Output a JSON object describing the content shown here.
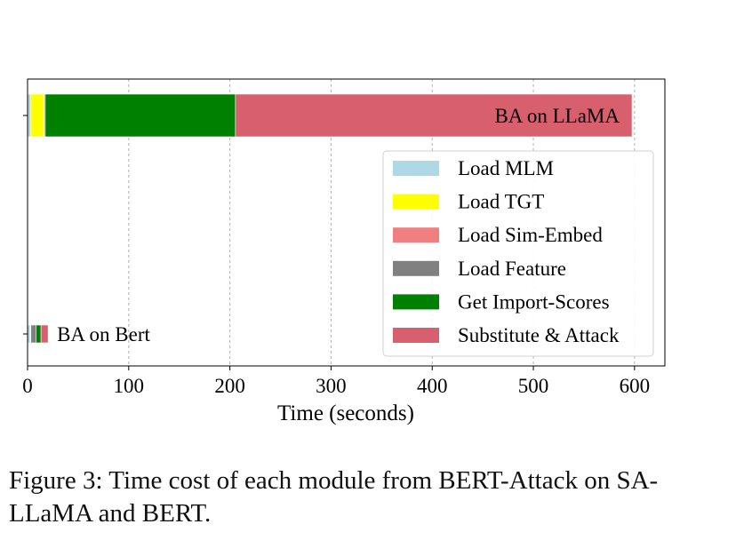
{
  "chart_data": {
    "type": "bar",
    "orientation": "horizontal",
    "stacked": true,
    "xlabel": "Time (seconds)",
    "ylabel": "",
    "xlim": [
      0,
      630
    ],
    "xticks": [
      0,
      100,
      200,
      300,
      400,
      500,
      600
    ],
    "grid": "x-dashed",
    "legend_position": "lower-right",
    "categories": [
      "BA on Bert",
      "BA on LLaMA"
    ],
    "series": [
      {
        "name": "Load MLM",
        "color": "#add8e6",
        "values": [
          2.5,
          3
        ]
      },
      {
        "name": "Load TGT",
        "color": "#ffff00",
        "values": [
          0.5,
          13
        ]
      },
      {
        "name": "Load Sim-Embed",
        "color": "#f08080",
        "values": [
          0.3,
          0.5
        ]
      },
      {
        "name": "Load Feature",
        "color": "#808080",
        "values": [
          5,
          1
        ]
      },
      {
        "name": "Get Import-Scores",
        "color": "#008000",
        "values": [
          5,
          188
        ]
      },
      {
        "name": "Substitute & Attack",
        "color": "#d75f6e",
        "values": [
          7,
          392
        ]
      }
    ]
  },
  "caption": "Figure 3: Time cost of each module from BERT-Attack on SA-LLaMA and BERT."
}
